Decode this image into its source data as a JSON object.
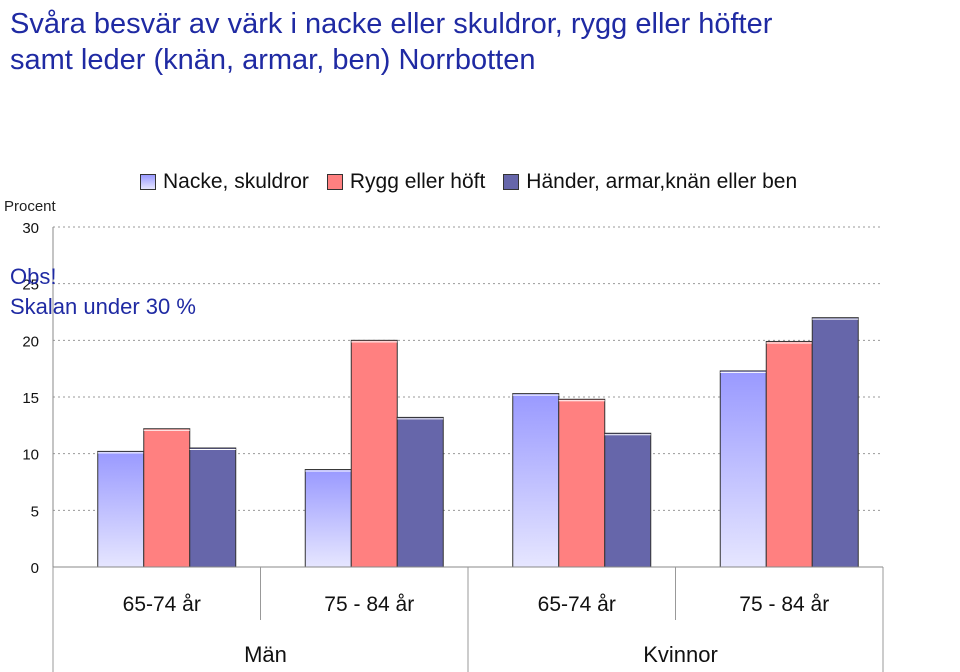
{
  "chart_data": {
    "type": "bar",
    "title_lines": [
      "Svåra besvär av värk i nacke eller skuldror, rygg eller höfter",
      "samt leder (knän, armar, ben) Norrbotten"
    ],
    "ylabel": "Procent",
    "ylim": [
      0,
      30
    ],
    "yticks": [
      0,
      5,
      10,
      15,
      20,
      25,
      30
    ],
    "grid": true,
    "legend_position": "top",
    "categories": [
      "65-74 år",
      "75 - 84 år",
      "65-74 år",
      "75 - 84 år"
    ],
    "groups": [
      {
        "label": "Män",
        "categories": [
          0,
          1
        ]
      },
      {
        "label": "Kvinnor",
        "categories": [
          2,
          3
        ]
      }
    ],
    "series": [
      {
        "name": "Nacke, skuldror",
        "values": [
          10.2,
          8.6,
          15.3,
          17.3
        ],
        "color": "#9999ff"
      },
      {
        "name": "Rygg eller höft",
        "values": [
          12.2,
          20.0,
          14.8,
          19.9
        ],
        "color": "#ff8080"
      },
      {
        "name": "Händer, armar,knän eller ben",
        "values": [
          10.5,
          13.2,
          11.8,
          22.0
        ],
        "color": "#6666aa"
      }
    ]
  },
  "note": {
    "line1": "Obs!",
    "line2": "Skalan under 30 %"
  }
}
